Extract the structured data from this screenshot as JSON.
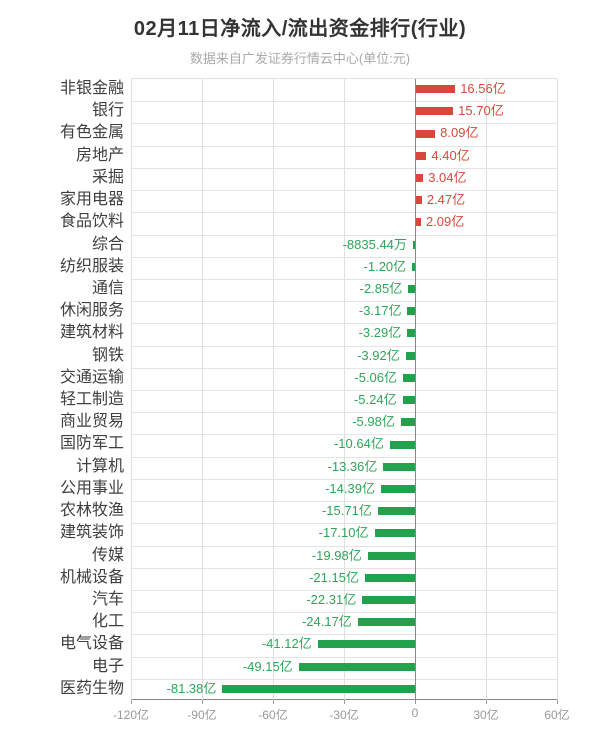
{
  "page": {
    "background": "#ffffff"
  },
  "chart_data": {
    "type": "bar",
    "orientation": "horizontal",
    "title": "02月11日净流入/流出资金排行(行业)",
    "subtitle": "数据来自广发证券行情云中心(单位:元)",
    "unit": "元",
    "categories": [
      "非银金融",
      "银行",
      "有色金属",
      "房地产",
      "采掘",
      "家用电器",
      "食品饮料",
      "综合",
      "纺织服装",
      "通信",
      "休闲服务",
      "建筑材料",
      "钢铁",
      "交通运输",
      "轻工制造",
      "商业贸易",
      "国防军工",
      "计算机",
      "公用事业",
      "农林牧渔",
      "建筑装饰",
      "传媒",
      "机械设备",
      "汽车",
      "化工",
      "电气设备",
      "电子",
      "医药生物"
    ],
    "values_yi": [
      16.56,
      15.7,
      8.09,
      4.4,
      3.04,
      2.47,
      2.09,
      -0.883544,
      -1.2,
      -2.85,
      -3.17,
      -3.29,
      -3.92,
      -5.06,
      -5.24,
      -5.98,
      -10.64,
      -13.36,
      -14.39,
      -15.71,
      -17.1,
      -19.98,
      -21.15,
      -22.31,
      -24.17,
      -41.12,
      -49.15,
      -81.38
    ],
    "value_labels": [
      "16.56亿",
      "15.70亿",
      "8.09亿",
      "4.40亿",
      "3.04亿",
      "2.47亿",
      "2.09亿",
      "-8835.44万",
      "-1.20亿",
      "-2.85亿",
      "-3.17亿",
      "-3.29亿",
      "-3.92亿",
      "-5.06亿",
      "-5.24亿",
      "-5.98亿",
      "-10.64亿",
      "-13.36亿",
      "-14.39亿",
      "-15.71亿",
      "-17.10亿",
      "-19.98亿",
      "-21.15亿",
      "-22.31亿",
      "-24.17亿",
      "-41.12亿",
      "-49.15亿",
      "-81.38亿"
    ],
    "x_ticks": [
      "-120亿",
      "-90亿",
      "-60亿",
      "-30亿",
      "0",
      "30亿",
      "60亿"
    ],
    "x_tick_values_yi": [
      -120,
      -90,
      -60,
      -30,
      0,
      30,
      60
    ],
    "xlim_yi": [
      -120,
      60
    ],
    "grid": true,
    "legend": "none",
    "colors": {
      "positive_bar": "#d8473b",
      "negative_bar": "#23a24d",
      "positive_label": "#d8473b",
      "negative_label": "#2ea558",
      "gridline": "#e4e4e4",
      "axis_line": "#888888",
      "category_label": "#3f3f3f",
      "tick_label": "#999999",
      "title": "#333333",
      "subtitle": "#aaaaaa"
    }
  }
}
